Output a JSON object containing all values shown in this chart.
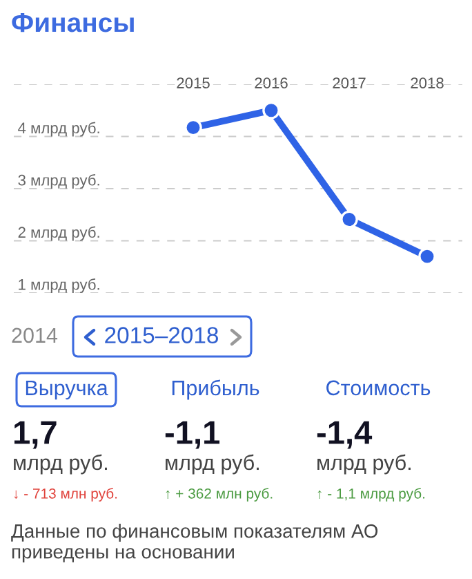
{
  "chart_data": {
    "type": "line",
    "title": "Финансы",
    "categories": [
      "2015",
      "2016",
      "2017",
      "2018"
    ],
    "series": [
      {
        "color": "#2f63e6",
        "values": [
          4.17,
          4.5,
          2.41,
          1.7
        ]
      }
    ],
    "ylim": [
      1,
      5
    ],
    "yticks": [
      {
        "value": 1,
        "label": "1 млрд руб."
      },
      {
        "value": 2,
        "label": "2 млрд руб."
      },
      {
        "value": 3,
        "label": "3 млрд руб."
      },
      {
        "value": 4,
        "label": "4 млрд руб."
      },
      {
        "value": 5,
        "label": null
      }
    ],
    "grid": "y",
    "marker": "circle",
    "line_style": "solid",
    "legend": false,
    "annotations": [
      "2014",
      "2015–2018",
      "Выручка",
      "Прибыль",
      "Стоимость",
      "1,7",
      "млрд руб.",
      "↓ - 713 млн руб.",
      "-1,1",
      "млрд руб.",
      "↑ + 362 млн руб.",
      "-1,4",
      "млрд руб.",
      "↑ - 1,1 млрд руб.",
      "Данные по финансовым показателям АО приведены на основании"
    ]
  }
}
